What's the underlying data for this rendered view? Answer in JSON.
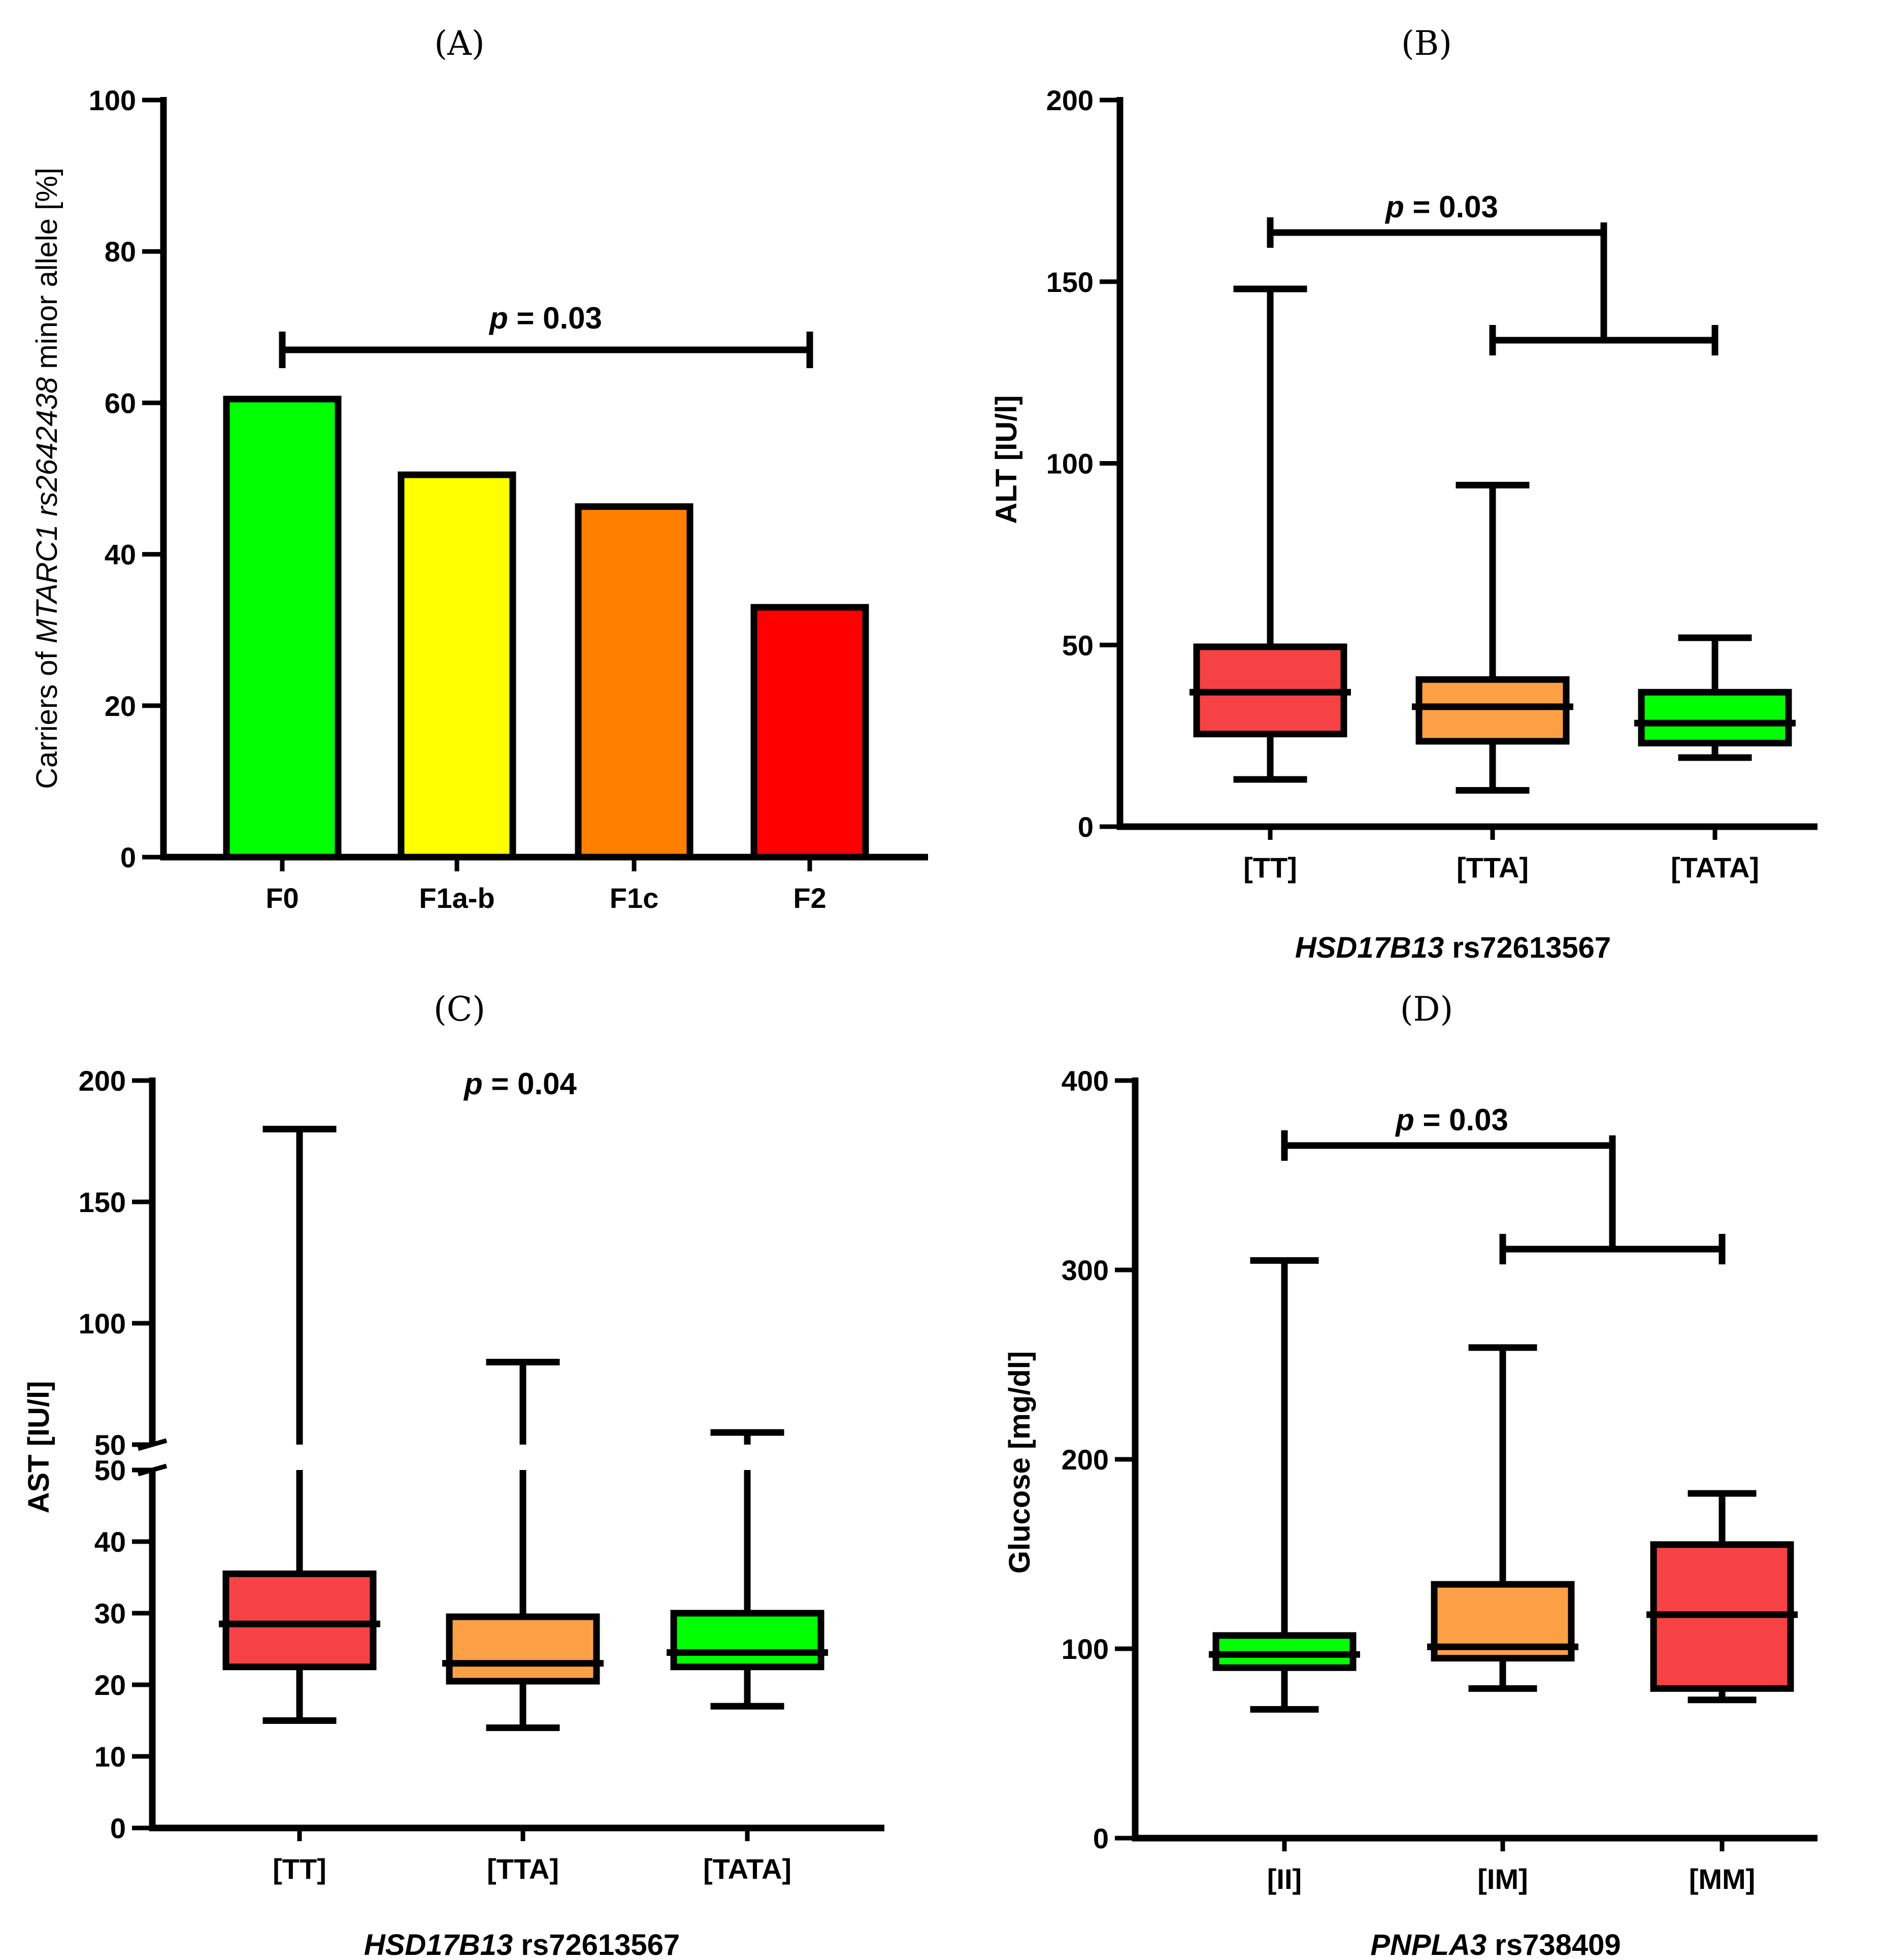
{
  "chart_data": [
    {
      "panel": "(A)",
      "type": "bar",
      "categories": [
        "F0",
        "F1a-b",
        "F1c",
        "F2"
      ],
      "values": [
        60.5,
        50.5,
        46.3,
        33.0
      ],
      "colors": [
        "#00ff00",
        "#ffff00",
        "#ff8000",
        "#ff0000"
      ],
      "ylabel_parts": [
        "Carriers of ",
        "MTARC1 rs2642438",
        " minor allele [%]"
      ],
      "ylim": [
        0,
        100
      ],
      "yticks": [
        0,
        20,
        40,
        60,
        80,
        100
      ],
      "annotation": {
        "prefix": "p",
        "text": " = 0.03",
        "from": "F0",
        "to": "F2",
        "y": 67
      }
    },
    {
      "panel": "(B)",
      "type": "box",
      "categories": [
        "[TT]",
        "[TTA]",
        "[TATA]"
      ],
      "boxes": [
        {
          "min": 13,
          "q1": 25.5,
          "median": 37,
          "q3": 49.5,
          "max": 148,
          "color": "#f64244"
        },
        {
          "min": 10,
          "q1": 23.5,
          "median": 33,
          "q3": 40.5,
          "max": 94,
          "color": "#fda045"
        },
        {
          "min": 19,
          "q1": 23,
          "median": 28.5,
          "q3": 37,
          "max": 52,
          "color": "#00ff00"
        }
      ],
      "ylabel": "ALT [IU/l]",
      "xlabel_parts": [
        "HSD17B13",
        " rs72613567"
      ],
      "ylim": [
        0,
        200
      ],
      "yticks": [
        0,
        50,
        100,
        150,
        200
      ],
      "annotation": {
        "prefix": "p",
        "text": " = 0.03"
      }
    },
    {
      "panel": "(C)",
      "type": "box",
      "categories": [
        "[TT]",
        "[TTA]",
        "[TATA]"
      ],
      "boxes": [
        {
          "min": 15,
          "q1": 22.5,
          "median": 28.5,
          "q3": 35.5,
          "max": 180,
          "color": "#f64244"
        },
        {
          "min": 14,
          "q1": 20.5,
          "median": 23,
          "q3": 29.5,
          "max": 84,
          "color": "#fda045"
        },
        {
          "min": 17,
          "q1": 22.5,
          "median": 24.5,
          "q3": 30,
          "max": 55,
          "color": "#00ff00"
        }
      ],
      "ylabel": "AST [IU/l]",
      "xlabel_parts": [
        "HSD17B13",
        " rs72613567"
      ],
      "ylim": [
        0,
        200
      ],
      "axis_break": 50,
      "yticks_lower": [
        0,
        10,
        20,
        30,
        40,
        50
      ],
      "yticks_upper": [
        50,
        100,
        150,
        200
      ],
      "annotation": {
        "prefix": "p",
        "text": " = 0.04"
      }
    },
    {
      "panel": "(D)",
      "type": "box",
      "categories": [
        "[II]",
        "[IM]",
        "[MM]"
      ],
      "boxes": [
        {
          "min": 68,
          "q1": 90,
          "median": 97,
          "q3": 107,
          "max": 305,
          "color": "#00ff00"
        },
        {
          "min": 79,
          "q1": 95,
          "median": 101,
          "q3": 134,
          "max": 259,
          "color": "#fda045"
        },
        {
          "min": 73,
          "q1": 79,
          "median": 118,
          "q3": 155,
          "max": 182,
          "color": "#f64244"
        }
      ],
      "ylabel": "Glucose [mg/dl]",
      "xlabel_parts": [
        "PNPLA3",
        " rs738409"
      ],
      "ylim": [
        0,
        400
      ],
      "yticks": [
        0,
        100,
        200,
        300,
        400
      ],
      "annotation": {
        "prefix": "p",
        "text": " = 0.03"
      }
    }
  ]
}
